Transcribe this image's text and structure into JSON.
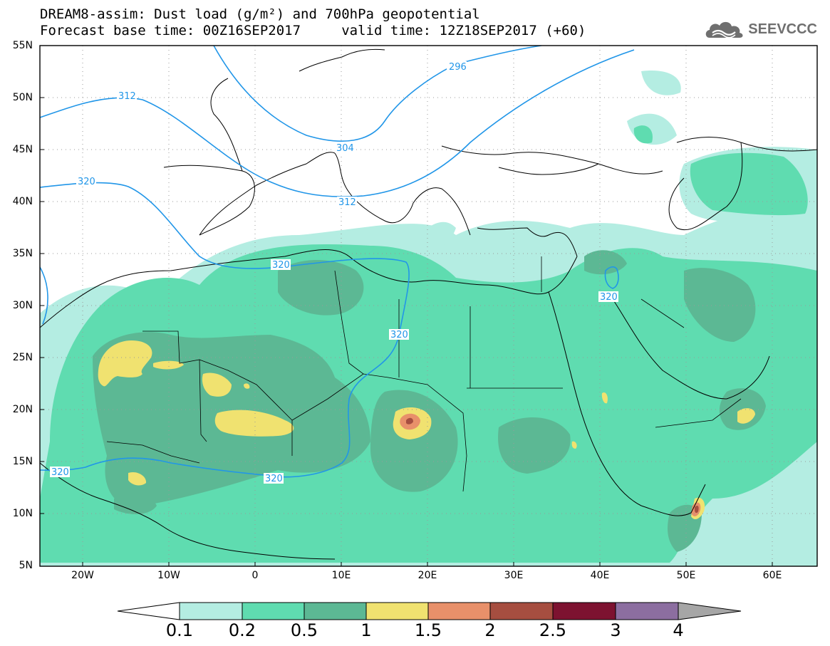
{
  "title": {
    "line1": "DREAM8-assim: Dust load (g/m²) and 700hPa geopotential",
    "line2": "Forecast base time: 00Z16SEP2017     valid time: 12Z18SEP2017 (+60)"
  },
  "logo": {
    "text": "SEEVCCC",
    "icon": "cloud-logo-icon"
  },
  "map": {
    "lat_labels": [
      "55N",
      "50N",
      "45N",
      "40N",
      "35N",
      "30N",
      "25N",
      "20N",
      "15N",
      "10N",
      "5N"
    ],
    "lon_labels": [
      "20W",
      "10W",
      "0",
      "10E",
      "20E",
      "30E",
      "40E",
      "50E",
      "60E"
    ],
    "extent": {
      "lon_min": -25,
      "lon_max": 65,
      "lat_min": 5,
      "lat_max": 55
    },
    "contour_labels": [
      "296",
      "304",
      "312",
      "312",
      "320",
      "320",
      "320",
      "320",
      "320",
      "320"
    ]
  },
  "colorbar": {
    "labels": [
      "0.1",
      "0.2",
      "0.5",
      "1",
      "1.5",
      "2",
      "2.5",
      "3",
      "4"
    ],
    "colors": [
      "#b4ede2",
      "#5fdcb0",
      "#5cb894",
      "#f0e270",
      "#e8906a",
      "#a64e40",
      "#7d1230",
      "#8c6ea0"
    ],
    "under_color": "#ffffff",
    "over_color": "#a6a6a6"
  }
}
